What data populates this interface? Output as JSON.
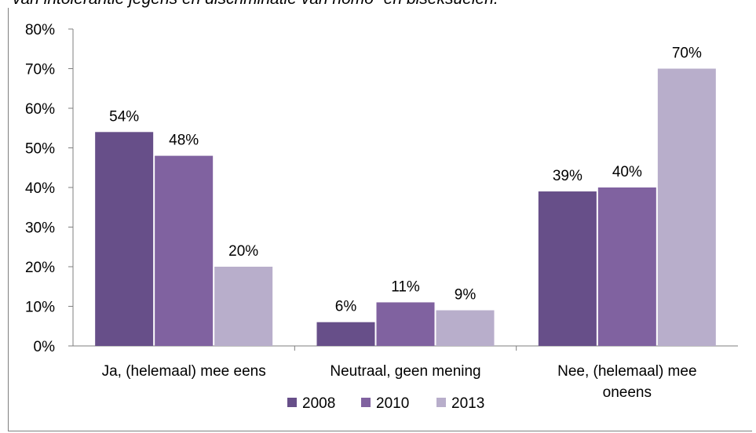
{
  "title_fragment": "van intolerantie jegens en discriminatie van homo- en biseksuelen.",
  "chart_data": {
    "type": "bar",
    "categories": [
      [
        "Ja, (helemaal) mee eens"
      ],
      [
        "Neutraal, geen mening"
      ],
      [
        "Nee, (helemaal) mee",
        "oneens"
      ]
    ],
    "series": [
      {
        "name": "2008",
        "values": [
          54,
          6,
          39
        ],
        "labels": [
          "54%",
          "6%",
          "39%"
        ],
        "color": "#674f89"
      },
      {
        "name": "2010",
        "values": [
          48,
          11,
          40
        ],
        "labels": [
          "48%",
          "11%",
          "40%"
        ],
        "color": "#8062a0"
      },
      {
        "name": "2013",
        "values": [
          20,
          9,
          70
        ],
        "labels": [
          "20%",
          "9%",
          "70%"
        ],
        "color": "#b8aecb"
      }
    ],
    "ylim": [
      0,
      80
    ],
    "yticks": [
      0,
      10,
      20,
      30,
      40,
      50,
      60,
      70,
      80
    ],
    "ytick_labels": [
      "0%",
      "10%",
      "20%",
      "30%",
      "40%",
      "50%",
      "60%",
      "70%",
      "80%"
    ],
    "legend_position": "bottom",
    "grid": false,
    "axis_color": "#7f7f7f"
  }
}
